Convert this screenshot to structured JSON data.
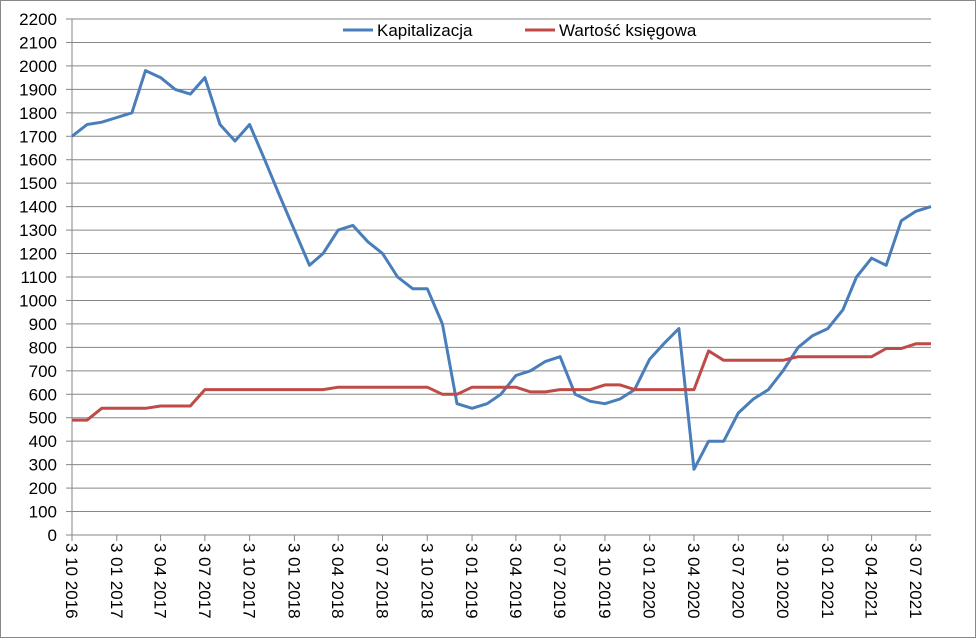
{
  "chart_data": {
    "type": "line",
    "x": [
      "3 10 2016",
      "3 11 2016",
      "3 12 2016",
      "3 01 2017",
      "3 02 2017",
      "3 03 2017",
      "3 04 2017",
      "3 05 2017",
      "3 06 2017",
      "3 07 2017",
      "3 08 2017",
      "3 09 2017",
      "3 10 2017",
      "3 11 2017",
      "3 12 2017",
      "3 01 2018",
      "3 02 2018",
      "3 03 2018",
      "3 04 2018",
      "3 05 2018",
      "3 06 2018",
      "3 07 2018",
      "3 08 2018",
      "3 09 2018",
      "3 10 2018",
      "3 11 2018",
      "3 12 2018",
      "3 01 2019",
      "3 02 2019",
      "3 03 2019",
      "3 04 2019",
      "3 05 2019",
      "3 06 2019",
      "3 07 2019",
      "3 08 2019",
      "3 09 2019",
      "3 10 2019",
      "3 11 2019",
      "3 12 2019",
      "3 01 2020",
      "3 02 2020",
      "3 03 2020",
      "3 04 2020",
      "3 05 2020",
      "3 06 2020",
      "3 07 2020",
      "3 08 2020",
      "3 09 2020",
      "3 10 2020",
      "3 11 2020",
      "3 12 2020",
      "3 01 2021",
      "3 02 2021",
      "3 03 2021",
      "3 04 2021",
      "3 05 2021",
      "3 06 2021",
      "3 07 2021",
      "3 08 2021"
    ],
    "series": [
      {
        "name": "Kapitalizacja",
        "color": "#4a7ebb",
        "values": [
          1700,
          1750,
          1760,
          1780,
          1800,
          1980,
          1950,
          1900,
          1880,
          1950,
          1750,
          1680,
          1750,
          1600,
          1450,
          1300,
          1150,
          1200,
          1300,
          1320,
          1250,
          1200,
          1100,
          1050,
          1050,
          900,
          560,
          540,
          560,
          600,
          680,
          700,
          740,
          760,
          600,
          570,
          560,
          580,
          620,
          750,
          820,
          880,
          280,
          400,
          400,
          520,
          580,
          620,
          700,
          800,
          850,
          880,
          960,
          1100,
          1180,
          1150,
          1340,
          1380,
          1400
        ]
      },
      {
        "name": "Wartość księgowa",
        "color": "#be4b48",
        "values": [
          490,
          490,
          540,
          540,
          540,
          540,
          550,
          550,
          550,
          620,
          620,
          620,
          620,
          620,
          620,
          620,
          620,
          620,
          630,
          630,
          630,
          630,
          630,
          630,
          630,
          600,
          600,
          630,
          630,
          630,
          630,
          610,
          610,
          620,
          620,
          620,
          640,
          640,
          620,
          620,
          620,
          620,
          620,
          785,
          745,
          745,
          745,
          745,
          745,
          760,
          760,
          760,
          760,
          760,
          760,
          795,
          795,
          815,
          815
        ]
      }
    ],
    "xlim": [
      "3 10 2016",
      "3 08 2021"
    ],
    "xticks": [
      "3 10 2016",
      "3 01 2017",
      "3 04 2017",
      "3 07 2017",
      "3 10 2017",
      "3 01 2018",
      "3 04 2018",
      "3 07 2018",
      "3 10 2018",
      "3 01 2019",
      "3 04 2019",
      "3 07 2019",
      "3 10 2019",
      "3 01 2020",
      "3 04 2020",
      "3 07 2020",
      "3 10 2020",
      "3 01 2021",
      "3 04 2021",
      "3 07 2021"
    ],
    "ylim": [
      0,
      2200
    ],
    "yticks": [
      0,
      100,
      200,
      300,
      400,
      500,
      600,
      700,
      800,
      900,
      1000,
      1100,
      1200,
      1300,
      1400,
      1500,
      1600,
      1700,
      1800,
      1900,
      2000,
      2100,
      2200
    ],
    "grid": true,
    "legend": "top"
  }
}
